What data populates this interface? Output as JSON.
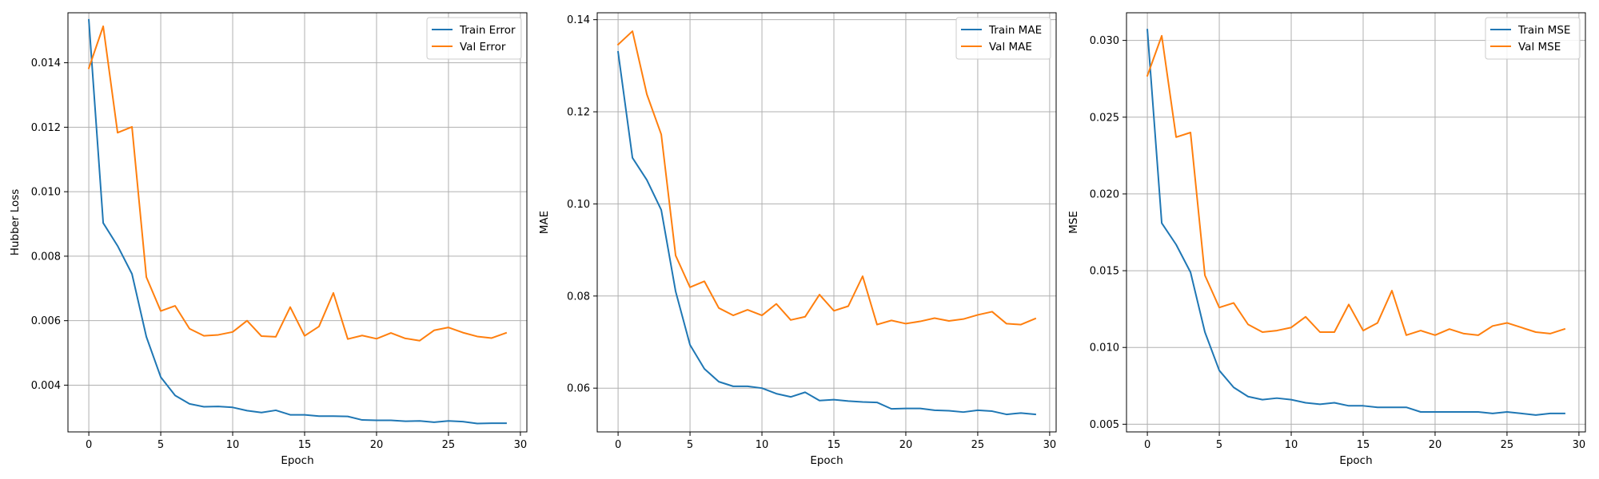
{
  "chart_data": [
    {
      "type": "line",
      "xlabel": "Epoch",
      "ylabel": "Hubber Loss",
      "xlim": [
        -1.45,
        30.45
      ],
      "ylim": [
        0.00255,
        0.01555
      ],
      "xticks": [
        0,
        5,
        10,
        15,
        20,
        25,
        30
      ],
      "yticks": [
        0.004,
        0.006,
        0.008,
        0.01,
        0.012,
        0.014
      ],
      "ytick_labels": [
        "0.004",
        "0.006",
        "0.008",
        "0.010",
        "0.012",
        "0.014"
      ],
      "grid": true,
      "legend": "upper right",
      "x": [
        0,
        1,
        2,
        3,
        4,
        5,
        6,
        7,
        8,
        9,
        10,
        11,
        12,
        13,
        14,
        15,
        16,
        17,
        18,
        19,
        20,
        21,
        22,
        23,
        24,
        25,
        26,
        27,
        28,
        29
      ],
      "series": [
        {
          "name": "Train Error",
          "color": "#1f77b4",
          "values": [
            0.01533,
            0.00903,
            0.00832,
            0.00745,
            0.0055,
            0.00425,
            0.00368,
            0.00342,
            0.00333,
            0.00334,
            0.00331,
            0.00321,
            0.00315,
            0.00322,
            0.00308,
            0.00308,
            0.00304,
            0.00304,
            0.00303,
            0.00292,
            0.00291,
            0.00291,
            0.00288,
            0.00289,
            0.00285,
            0.00289,
            0.00287,
            0.00281,
            0.00282,
            0.00282
          ]
        },
        {
          "name": "Val Error",
          "color": "#ff7f0e",
          "values": [
            0.01383,
            0.01513,
            0.01183,
            0.01201,
            0.00735,
            0.0063,
            0.00646,
            0.00575,
            0.00553,
            0.00556,
            0.00565,
            0.006,
            0.00552,
            0.0055,
            0.00642,
            0.00553,
            0.00582,
            0.00686,
            0.00543,
            0.00554,
            0.00544,
            0.00562,
            0.00545,
            0.00538,
            0.0057,
            0.00579,
            0.00563,
            0.00551,
            0.00546,
            0.00562
          ]
        }
      ]
    },
    {
      "type": "line",
      "xlabel": "Epoch",
      "ylabel": "MAE",
      "xlim": [
        -1.45,
        30.45
      ],
      "ylim": [
        0.0505,
        0.1415
      ],
      "xticks": [
        0,
        5,
        10,
        15,
        20,
        25,
        30
      ],
      "yticks": [
        0.06,
        0.08,
        0.1,
        0.12,
        0.14
      ],
      "ytick_labels": [
        "0.06",
        "0.08",
        "0.10",
        "0.12",
        "0.14"
      ],
      "grid": true,
      "legend": "upper right",
      "x": [
        0,
        1,
        2,
        3,
        4,
        5,
        6,
        7,
        8,
        9,
        10,
        11,
        12,
        13,
        14,
        15,
        16,
        17,
        18,
        19,
        20,
        21,
        22,
        23,
        24,
        25,
        26,
        27,
        28,
        29
      ],
      "series": [
        {
          "name": "Train MAE",
          "color": "#1f77b4",
          "values": [
            0.133,
            0.11,
            0.1052,
            0.0987,
            0.081,
            0.0694,
            0.0642,
            0.0614,
            0.0604,
            0.0604,
            0.06,
            0.0588,
            0.0581,
            0.0591,
            0.0573,
            0.0575,
            0.0572,
            0.057,
            0.0569,
            0.0555,
            0.0556,
            0.0556,
            0.0552,
            0.0551,
            0.0548,
            0.0552,
            0.055,
            0.0543,
            0.0546,
            0.0543
          ]
        },
        {
          "name": "Val MAE",
          "color": "#ff7f0e",
          "values": [
            0.1346,
            0.1375,
            0.1238,
            0.1151,
            0.0888,
            0.0819,
            0.0832,
            0.0774,
            0.0758,
            0.077,
            0.0758,
            0.0783,
            0.0748,
            0.0755,
            0.0803,
            0.0768,
            0.0778,
            0.0843,
            0.0738,
            0.0747,
            0.074,
            0.0745,
            0.0752,
            0.0746,
            0.075,
            0.0759,
            0.0766,
            0.074,
            0.0738,
            0.0751
          ]
        }
      ]
    },
    {
      "type": "line",
      "xlabel": "Epoch",
      "ylabel": "MSE",
      "xlim": [
        -1.45,
        30.45
      ],
      "ylim": [
        0.0045,
        0.0318
      ],
      "xticks": [
        0,
        5,
        10,
        15,
        20,
        25,
        30
      ],
      "yticks": [
        0.005,
        0.01,
        0.015,
        0.02,
        0.025,
        0.03
      ],
      "ytick_labels": [
        "0.005",
        "0.010",
        "0.015",
        "0.020",
        "0.025",
        "0.030"
      ],
      "grid": true,
      "legend": "upper right",
      "x": [
        0,
        1,
        2,
        3,
        4,
        5,
        6,
        7,
        8,
        9,
        10,
        11,
        12,
        13,
        14,
        15,
        16,
        17,
        18,
        19,
        20,
        21,
        22,
        23,
        24,
        25,
        26,
        27,
        28,
        29
      ],
      "series": [
        {
          "name": "Train MSE",
          "color": "#1f77b4",
          "values": [
            0.0307,
            0.0181,
            0.0167,
            0.0149,
            0.011,
            0.0085,
            0.0074,
            0.0068,
            0.0066,
            0.0067,
            0.0066,
            0.0064,
            0.0063,
            0.0064,
            0.0062,
            0.0062,
            0.0061,
            0.0061,
            0.0061,
            0.0058,
            0.0058,
            0.0058,
            0.0058,
            0.0058,
            0.0057,
            0.0058,
            0.0057,
            0.0056,
            0.0057,
            0.0057
          ]
        },
        {
          "name": "Val MSE",
          "color": "#ff7f0e",
          "values": [
            0.0277,
            0.0303,
            0.0237,
            0.024,
            0.0147,
            0.0126,
            0.0129,
            0.0115,
            0.011,
            0.0111,
            0.0113,
            0.012,
            0.011,
            0.011,
            0.0128,
            0.0111,
            0.0116,
            0.0137,
            0.0108,
            0.0111,
            0.0108,
            0.0112,
            0.0109,
            0.0108,
            0.0114,
            0.0116,
            0.0113,
            0.011,
            0.0109,
            0.0112
          ]
        }
      ]
    }
  ]
}
